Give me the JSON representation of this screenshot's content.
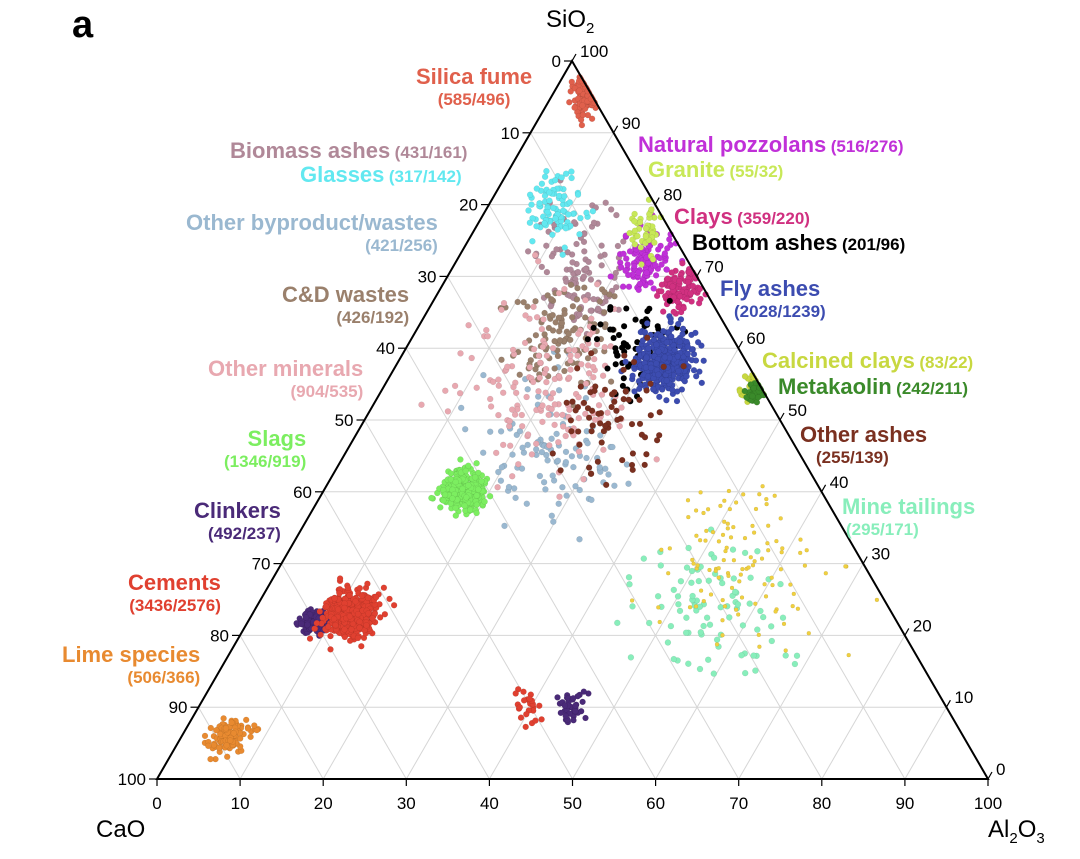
{
  "panel_label": "a",
  "chart_data": {
    "type": "ternary-scatter",
    "axes": {
      "top": {
        "label": "SiO",
        "subscript": "2"
      },
      "left": {
        "label": "CaO",
        "subscript": ""
      },
      "right": {
        "label": "Al",
        "subscript": "2",
        "label_tail": "O",
        "subscript_tail": "3"
      }
    },
    "ticks": {
      "left_edge": [
        "0",
        "10",
        "20",
        "30",
        "40",
        "50",
        "60",
        "70",
        "80",
        "90",
        "100"
      ],
      "right_edge": [
        "100",
        "90",
        "80",
        "70",
        "60",
        "50",
        "40",
        "30",
        "20",
        "10",
        "0"
      ],
      "bottom_edge": [
        "0",
        "10",
        "20",
        "30",
        "40",
        "50",
        "60",
        "70",
        "80",
        "90",
        "100"
      ]
    },
    "grid": true,
    "range": [
      0,
      100
    ],
    "series": [
      {
        "name": "Silica fume",
        "count": "(585/496)",
        "color": "#e0604c"
      },
      {
        "name": "Biomass ashes",
        "count": "(431/161)",
        "color": "#b08898"
      },
      {
        "name": "Glasses",
        "count": "(317/142)",
        "color": "#62e8f0"
      },
      {
        "name": "Other byproduct/wastes",
        "count": "(421/256)",
        "color": "#9ab8d0"
      },
      {
        "name": "C&D wastes",
        "count": "(426/192)",
        "color": "#9a806c"
      },
      {
        "name": "Other minerals",
        "count": "(904/535)",
        "color": "#e8a8b0"
      },
      {
        "name": "Slags",
        "count": "(1346/919)",
        "color": "#7cee60"
      },
      {
        "name": "Clinkers",
        "count": "(492/237)",
        "color": "#4a2a78"
      },
      {
        "name": "Cements",
        "count": "(3436/2576)",
        "color": "#e04030"
      },
      {
        "name": "Lime species",
        "count": "(506/366)",
        "color": "#e88a30"
      },
      {
        "name": "Natural pozzolans",
        "count": "(516/276)",
        "color": "#c030d8"
      },
      {
        "name": "Granite",
        "count": "(55/32)",
        "color": "#c8e858"
      },
      {
        "name": "Clays",
        "count": "(359/220)",
        "color": "#d03080"
      },
      {
        "name": "Bottom ashes",
        "count": "(201/96)",
        "color": "#000000"
      },
      {
        "name": "Fly ashes",
        "count": "(2028/1239)",
        "color": "#3c4cb0"
      },
      {
        "name": "Calcined clays",
        "count": "(83/22)",
        "color": "#c8d840"
      },
      {
        "name": "Metakaolin",
        "count": "(242/211)",
        "color": "#3a8a2a"
      },
      {
        "name": "Other ashes",
        "count": "(255/139)",
        "color": "#7a3020"
      },
      {
        "name": "Mine tailings",
        "count": "(295/171)",
        "color": "#88eebb"
      },
      {
        "name": "",
        "count": "",
        "color": "#f0d040"
      }
    ],
    "clusters": [
      {
        "series": 0,
        "cao": 1,
        "sio2": 95,
        "al2o3": 4,
        "spread": 3,
        "n": 140
      },
      {
        "series": 1,
        "cao": 15,
        "sio2": 70,
        "al2o3": 15,
        "spread": 12,
        "n": 110
      },
      {
        "series": 2,
        "cao": 12,
        "sio2": 80,
        "al2o3": 8,
        "spread": 7,
        "n": 90
      },
      {
        "series": 3,
        "cao": 30,
        "sio2": 45,
        "al2o3": 25,
        "spread": 18,
        "n": 100
      },
      {
        "series": 4,
        "cao": 20,
        "sio2": 62,
        "al2o3": 18,
        "spread": 12,
        "n": 110
      },
      {
        "series": 5,
        "cao": 25,
        "sio2": 55,
        "al2o3": 20,
        "spread": 20,
        "n": 170
      },
      {
        "series": 6,
        "cao": 43,
        "sio2": 40,
        "al2o3": 17,
        "spread": 5,
        "n": 320
      },
      {
        "series": 7,
        "cao": 70,
        "sio2": 22,
        "al2o3": 8,
        "spread": 3,
        "n": 140
      },
      {
        "series": 8,
        "cao": 65,
        "sio2": 23,
        "al2o3": 12,
        "spread": 6,
        "n": 380
      },
      {
        "series": 9,
        "cao": 88,
        "sio2": 6,
        "al2o3": 6,
        "spread": 4,
        "n": 120
      },
      {
        "series": 10,
        "cao": 5,
        "sio2": 72,
        "al2o3": 23,
        "spread": 6,
        "n": 120
      },
      {
        "series": 11,
        "cao": 3,
        "sio2": 76,
        "al2o3": 21,
        "spread": 4,
        "n": 45
      },
      {
        "series": 12,
        "cao": 3,
        "sio2": 68,
        "al2o3": 29,
        "spread": 5,
        "n": 110
      },
      {
        "series": 13,
        "cao": 12,
        "sio2": 60,
        "al2o3": 28,
        "spread": 10,
        "n": 70
      },
      {
        "series": 14,
        "cao": 10,
        "sio2": 58,
        "al2o3": 32,
        "spread": 7,
        "n": 420
      },
      {
        "series": 15,
        "cao": 1,
        "sio2": 55,
        "al2o3": 44,
        "spread": 3,
        "n": 30
      },
      {
        "series": 16,
        "cao": 1,
        "sio2": 54,
        "al2o3": 45,
        "spread": 2,
        "n": 60
      },
      {
        "series": 17,
        "cao": 20,
        "sio2": 50,
        "al2o3": 30,
        "spread": 14,
        "n": 70
      },
      {
        "series": 18,
        "cao": 20,
        "sio2": 25,
        "al2o3": 55,
        "spread": 18,
        "n": 90
      },
      {
        "series": 19,
        "cao": 15,
        "sio2": 30,
        "al2o3": 55,
        "spread": 20,
        "n": 110
      },
      {
        "series": 7,
        "cao": 45,
        "sio2": 10,
        "al2o3": 45,
        "spread": 4,
        "n": 40
      },
      {
        "series": 8,
        "cao": 50,
        "sio2": 10,
        "al2o3": 40,
        "spread": 4,
        "n": 25
      }
    ]
  }
}
